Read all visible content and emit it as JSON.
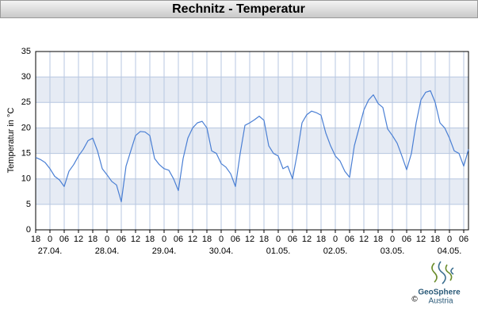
{
  "chart_data": {
    "type": "line",
    "title": "Rechnitz - Temperatur",
    "y_label": "Temperatur in °C",
    "color": "#4a7fd4",
    "grid": true,
    "banded": true,
    "ylim": [
      0,
      35
    ],
    "yticks": [
      0,
      5,
      10,
      15,
      20,
      25,
      30,
      35
    ],
    "xlim": [
      0,
      182
    ],
    "xticks": [
      {
        "value": 0,
        "label": "18"
      },
      {
        "value": 6,
        "label": "0"
      },
      {
        "value": 12,
        "label": "06"
      },
      {
        "value": 18,
        "label": "12"
      },
      {
        "value": 24,
        "label": "18"
      },
      {
        "value": 30,
        "label": "0"
      },
      {
        "value": 36,
        "label": "06"
      },
      {
        "value": 42,
        "label": "12"
      },
      {
        "value": 48,
        "label": "18"
      },
      {
        "value": 54,
        "label": "0"
      },
      {
        "value": 60,
        "label": "06"
      },
      {
        "value": 66,
        "label": "12"
      },
      {
        "value": 72,
        "label": "18"
      },
      {
        "value": 78,
        "label": "0"
      },
      {
        "value": 84,
        "label": "06"
      },
      {
        "value": 90,
        "label": "12"
      },
      {
        "value": 96,
        "label": "18"
      },
      {
        "value": 102,
        "label": "0"
      },
      {
        "value": 108,
        "label": "06"
      },
      {
        "value": 114,
        "label": "12"
      },
      {
        "value": 120,
        "label": "18"
      },
      {
        "value": 126,
        "label": "0"
      },
      {
        "value": 132,
        "label": "06"
      },
      {
        "value": 138,
        "label": "12"
      },
      {
        "value": 144,
        "label": "18"
      },
      {
        "value": 150,
        "label": "0"
      },
      {
        "value": 156,
        "label": "06"
      },
      {
        "value": 162,
        "label": "12"
      },
      {
        "value": 168,
        "label": "18"
      },
      {
        "value": 174,
        "label": "0"
      },
      {
        "value": 180,
        "label": "06"
      }
    ],
    "xdate_labels": [
      {
        "value": 6,
        "label": "27.04."
      },
      {
        "value": 30,
        "label": "28.04."
      },
      {
        "value": 54,
        "label": "29.04."
      },
      {
        "value": 78,
        "label": "30.04."
      },
      {
        "value": 102,
        "label": "01.05."
      },
      {
        "value": 126,
        "label": "02.05."
      },
      {
        "value": 150,
        "label": "03.05."
      },
      {
        "value": 174,
        "label": "04.05."
      }
    ],
    "x": [
      0,
      2,
      4,
      6,
      8,
      10,
      12,
      14,
      16,
      18,
      20,
      22,
      24,
      26,
      28,
      30,
      32,
      34,
      36,
      38,
      40,
      42,
      44,
      46,
      48,
      50,
      52,
      54,
      56,
      58,
      60,
      62,
      64,
      66,
      68,
      70,
      72,
      74,
      76,
      78,
      80,
      82,
      84,
      86,
      88,
      90,
      92,
      94,
      96,
      98,
      100,
      102,
      104,
      106,
      108,
      110,
      112,
      114,
      116,
      118,
      120,
      122,
      124,
      126,
      128,
      130,
      132,
      134,
      136,
      138,
      140,
      142,
      144,
      146,
      148,
      150,
      152,
      154,
      156,
      158,
      160,
      162,
      164,
      166,
      168,
      170,
      172,
      174,
      176,
      178,
      180,
      182
    ],
    "values": [
      14.2,
      13.8,
      13.2,
      12,
      10.5,
      9.8,
      8.5,
      11.5,
      12.8,
      14.5,
      15.8,
      17.5,
      18,
      15.5,
      12,
      10.8,
      9.5,
      8.8,
      5.5,
      12.5,
      15.5,
      18.5,
      19.3,
      19.2,
      18.5,
      14,
      12.8,
      12,
      11.7,
      10,
      7.7,
      14,
      18,
      20,
      21,
      21.3,
      20,
      15.5,
      15,
      13,
      12.3,
      11,
      8.5,
      15,
      20.5,
      21,
      21.6,
      22.3,
      21.5,
      16.5,
      15,
      14.5,
      12,
      12.5,
      10,
      15,
      21,
      22.6,
      23.3,
      23,
      22.5,
      19,
      16.5,
      14.5,
      13.5,
      11.5,
      10.3,
      16.5,
      20,
      23.5,
      25.5,
      26.5,
      24.8,
      24,
      19.8,
      18.5,
      17,
      14.5,
      11.8,
      15,
      21,
      25.5,
      27,
      27.3,
      25,
      21,
      20,
      18,
      15.5,
      15,
      12.5,
      15.8
    ]
  },
  "logo": {
    "name": "GeoSphere",
    "sub": "Austria",
    "copyright": "©"
  }
}
